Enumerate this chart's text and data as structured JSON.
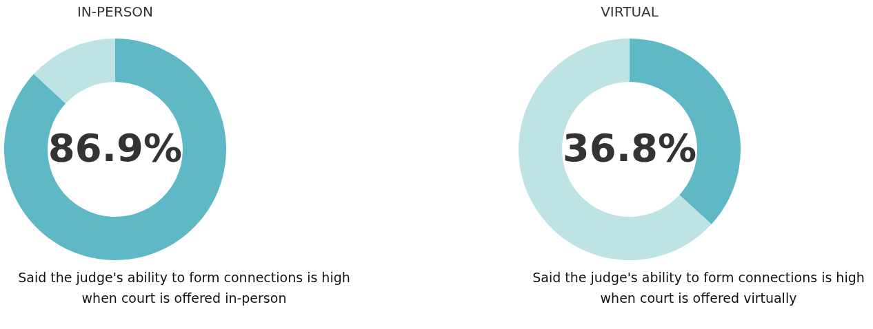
{
  "chart_data": [
    {
      "type": "donut",
      "title": "IN-PERSON",
      "categories": [
        null,
        null
      ],
      "values": [
        86.9,
        13.1
      ],
      "colors": [
        "#5eb8c5",
        "#bde3e5"
      ],
      "value_labels": [
        "86.9%",
        null
      ],
      "annotations": [
        "Said the judge's ability to form connections is high when court is offered in-person"
      ]
    },
    {
      "type": "donut",
      "title": "VIRTUAL",
      "categories": [
        null,
        null
      ],
      "values": [
        36.8,
        63.2
      ],
      "colors": [
        "#5eb8c5",
        "#bde3e5"
      ],
      "value_labels": [
        "36.8%",
        null
      ],
      "annotations": [
        "Said the judge's ability to form connections is high when court is offered virtually"
      ]
    }
  ]
}
